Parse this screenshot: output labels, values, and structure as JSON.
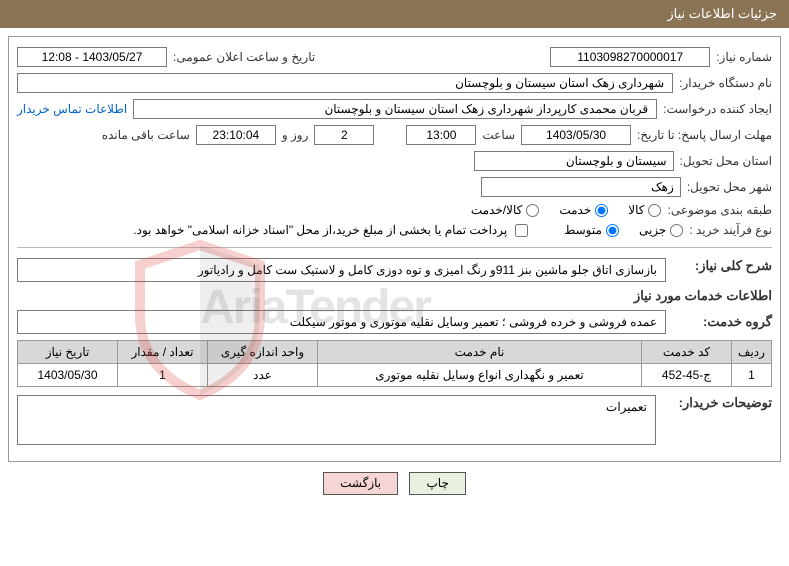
{
  "header": {
    "title": "جزئیات اطلاعات نیاز"
  },
  "fields": {
    "need_number_label": "شماره نیاز:",
    "need_number": "1103098270000017",
    "announce_datetime_label": "تاریخ و ساعت اعلان عمومی:",
    "announce_datetime": "1403/05/27 - 12:08",
    "buyer_org_label": "نام دستگاه خریدار:",
    "buyer_org": "شهرداری زهک استان سیستان و بلوچستان",
    "requester_label": "ایجاد کننده درخواست:",
    "requester": "قربان محمدی کارپرداز شهرداری زهک استان سیستان و بلوچستان",
    "buyer_contact_link": "اطلاعات تماس خریدار",
    "deadline_label": "مهلت ارسال پاسخ: تا تاریخ:",
    "deadline_date": "1403/05/30",
    "time_label": "ساعت",
    "deadline_time": "13:00",
    "days_remaining": "2",
    "days_label": "روز و",
    "hours_remaining": "23:10:04",
    "remaining_label": "ساعت باقی مانده",
    "delivery_province_label": "استان محل تحویل:",
    "delivery_province": "سیستان و بلوچستان",
    "delivery_city_label": "شهر محل تحویل:",
    "delivery_city": "زهک",
    "category_label": "طبقه بندی موضوعی:",
    "cat_goods": "کالا",
    "cat_service": "خدمت",
    "cat_both": "کالا/خدمت",
    "purchase_type_label": "نوع فرآیند خرید :",
    "type_minor": "جزیی",
    "type_medium": "متوسط",
    "payment_note": "پرداخت تمام یا بخشی از مبلغ خرید،از محل \"اسناد خزانه اسلامی\" خواهد بود.",
    "need_desc_label": "شرح کلی نیاز:",
    "need_desc": "بازسازی اتاق جلو ماشین بنز 911و رنگ امیزی و توه دوزی کامل و لاستیک ست کامل و رادیاتور",
    "service_info_label": "اطلاعات خدمات مورد نیاز",
    "service_group_label": "گروه خدمت:",
    "service_group": "عمده فروشی و خرده فروشی ؛ تعمیر وسایل نقلیه موتوری و موتور سیکلت",
    "buyer_notes_label": "توضیحات خریدار:",
    "buyer_notes": "تعمیرات"
  },
  "table": {
    "headers": {
      "row": "ردیف",
      "code": "کد خدمت",
      "name": "نام خدمت",
      "unit": "واحد اندازه گیری",
      "qty": "تعداد / مقدار",
      "date": "تاریخ نیاز"
    },
    "rows": [
      {
        "row": "1",
        "code": "ج-45-452",
        "name": "تعمیر و نگهداری انواع وسایل نقلیه موتوری",
        "unit": "عدد",
        "qty": "1",
        "date": "1403/05/30"
      }
    ]
  },
  "buttons": {
    "print": "چاپ",
    "back": "بازگشت"
  },
  "watermark": "AriaTender"
}
